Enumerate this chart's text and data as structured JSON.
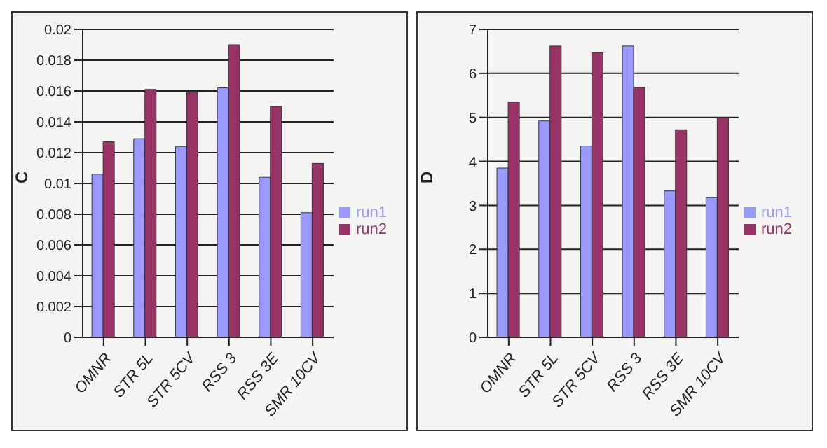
{
  "chart_data": [
    {
      "type": "bar",
      "ylabel": "C",
      "categories": [
        "OMNR",
        "STR 5L",
        "STR 5CV",
        "RSS 3",
        "RSS 3E",
        "SMR 10CV"
      ],
      "series": [
        {
          "name": "run1",
          "color": "#9999ff",
          "values": [
            0.0106,
            0.0129,
            0.0124,
            0.0162,
            0.0104,
            0.0081
          ]
        },
        {
          "name": "run2",
          "color": "#993366",
          "values": [
            0.0127,
            0.0161,
            0.0159,
            0.019,
            0.015,
            0.0113
          ]
        }
      ],
      "ylim": [
        0,
        0.02
      ],
      "yticks": [
        0,
        0.002,
        0.004,
        0.006,
        0.008,
        0.01,
        0.012,
        0.014,
        0.016,
        0.018,
        0.02
      ],
      "grid": "y",
      "legend": "right"
    },
    {
      "type": "bar",
      "ylabel": "D",
      "categories": [
        "OMNR",
        "STR 5L",
        "STR 5CV",
        "RSS 3",
        "RSS 3E",
        "SMR 10CV"
      ],
      "series": [
        {
          "name": "run1",
          "color": "#9999ff",
          "values": [
            3.85,
            4.92,
            4.35,
            6.62,
            3.33,
            3.18
          ]
        },
        {
          "name": "run2",
          "color": "#993366",
          "values": [
            5.35,
            6.62,
            6.47,
            5.68,
            4.72,
            5.0
          ]
        }
      ],
      "ylim": [
        0,
        7
      ],
      "yticks": [
        0,
        1,
        2,
        3,
        4,
        5,
        6,
        7
      ],
      "grid": "y",
      "legend": "right"
    }
  ]
}
